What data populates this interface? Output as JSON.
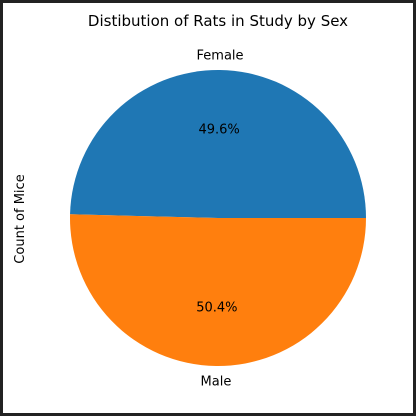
{
  "chart_data": {
    "type": "pie",
    "title": "Distibution of Rats in Study by Sex",
    "ylabel": "Count of Mice",
    "categories": [
      "Female",
      "Male"
    ],
    "values": [
      49.6,
      50.4
    ],
    "labels": [
      "49.6%",
      "50.4%"
    ],
    "colors": [
      "#1f77b4",
      "#ff7f0e"
    ],
    "start_angle_deg": 0,
    "direction": "counterclockwise"
  }
}
